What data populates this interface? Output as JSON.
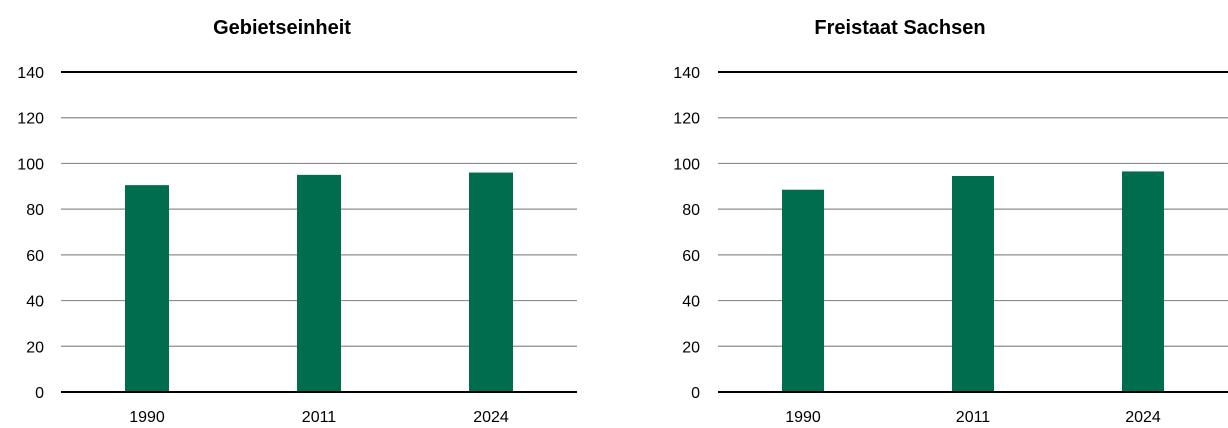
{
  "chart_data": [
    {
      "type": "bar",
      "title": "Gebietseinheit",
      "categories": [
        "1990",
        "2011",
        "2024"
      ],
      "values": [
        90.5,
        95,
        96
      ],
      "ylim": [
        0,
        140
      ],
      "yticks": [
        0,
        20,
        40,
        60,
        80,
        100,
        120,
        140
      ],
      "grid": true,
      "xlabel": "",
      "ylabel": ""
    },
    {
      "type": "bar",
      "title": "Freistaat Sachsen",
      "categories": [
        "1990",
        "2011",
        "2024"
      ],
      "values": [
        88.5,
        94.5,
        96.5
      ],
      "ylim": [
        0,
        140
      ],
      "yticks": [
        0,
        20,
        40,
        60,
        80,
        100,
        120,
        140
      ],
      "grid": true,
      "xlabel": "",
      "ylabel": ""
    }
  ],
  "colors": {
    "bar": "#006E4E",
    "grid": "#8C8C8C",
    "axis": "#000000"
  }
}
